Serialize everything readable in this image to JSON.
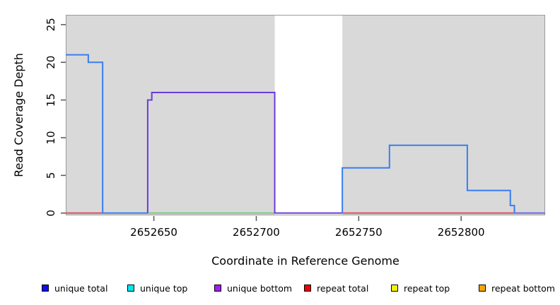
{
  "figure": {
    "x_axis": {
      "title": "Coordinate in Reference Genome"
    },
    "y_axis": {
      "title": "Read Coverage Depth"
    }
  },
  "legend": {
    "items": [
      {
        "label": "unique total",
        "color": "#0D0DEE"
      },
      {
        "label": "unique top",
        "color": "#00E8EE"
      },
      {
        "label": "unique bottom",
        "color": "#A020F0"
      },
      {
        "label": "repeat total",
        "color": "#EE0000"
      },
      {
        "label": "repeat top",
        "color": "#F2F200"
      },
      {
        "label": "repeat bottom",
        "color": "#F5A300"
      }
    ]
  },
  "chart_data": {
    "type": "line",
    "subtype": "step-coverage",
    "title": "",
    "xlabel": "Coordinate in Reference Genome",
    "ylabel": "Read Coverage Depth",
    "xlim": [
      2652607,
      2652841
    ],
    "ylim": [
      -0.3,
      26.3
    ],
    "x_ticks": [
      2652650,
      2652700,
      2652750,
      2652800
    ],
    "y_ticks": [
      0,
      5,
      10,
      15,
      20,
      25
    ],
    "grid": false,
    "legend_position": "bottom",
    "panel_background": "#D9D9D9",
    "panel_border_color": "#9B9B9B",
    "tick_color": "#555555",
    "gap_region": {
      "x_start": 2652709,
      "x_end": 2652742,
      "color": "#FFFFFF"
    },
    "series": [
      {
        "name": "zero-baseline-green",
        "color": "#7CC97C",
        "points": [
          [
            2652647,
            0
          ],
          [
            2652709,
            0
          ]
        ]
      },
      {
        "name": "zero-baseline-red-left",
        "color": "#DC505F",
        "points": [
          [
            2652607,
            0
          ],
          [
            2652625,
            0
          ]
        ]
      },
      {
        "name": "zero-baseline-red-right",
        "color": "#DC505F",
        "points": [
          [
            2652742,
            0
          ],
          [
            2652826,
            0
          ]
        ]
      },
      {
        "name": "zero-baseline-blueviolet-right",
        "color": "#6F66EE",
        "points": [
          [
            2652826,
            0
          ],
          [
            2652841,
            0
          ]
        ]
      },
      {
        "name": "unique-coverage-left",
        "color": "#3B7DF0",
        "points": [
          [
            2652607,
            21
          ],
          [
            2652618,
            21
          ],
          [
            2652618,
            20
          ],
          [
            2652625,
            20
          ],
          [
            2652625,
            0
          ],
          [
            2652647,
            0
          ]
        ]
      },
      {
        "name": "unique-bottom-coverage",
        "color": "#6B3BE0",
        "points": [
          [
            2652647,
            0
          ],
          [
            2652647,
            15
          ],
          [
            2652649,
            15
          ],
          [
            2652649,
            16
          ],
          [
            2652709,
            16
          ],
          [
            2652709,
            0
          ],
          [
            2652742,
            0
          ]
        ]
      },
      {
        "name": "unique-coverage-right",
        "color": "#3B7DF0",
        "points": [
          [
            2652742,
            0
          ],
          [
            2652742,
            6
          ],
          [
            2652765,
            6
          ],
          [
            2652765,
            9
          ],
          [
            2652803,
            9
          ],
          [
            2652803,
            3
          ],
          [
            2652824,
            3
          ],
          [
            2652824,
            1
          ],
          [
            2652826,
            1
          ],
          [
            2652826,
            0
          ]
        ]
      }
    ]
  }
}
